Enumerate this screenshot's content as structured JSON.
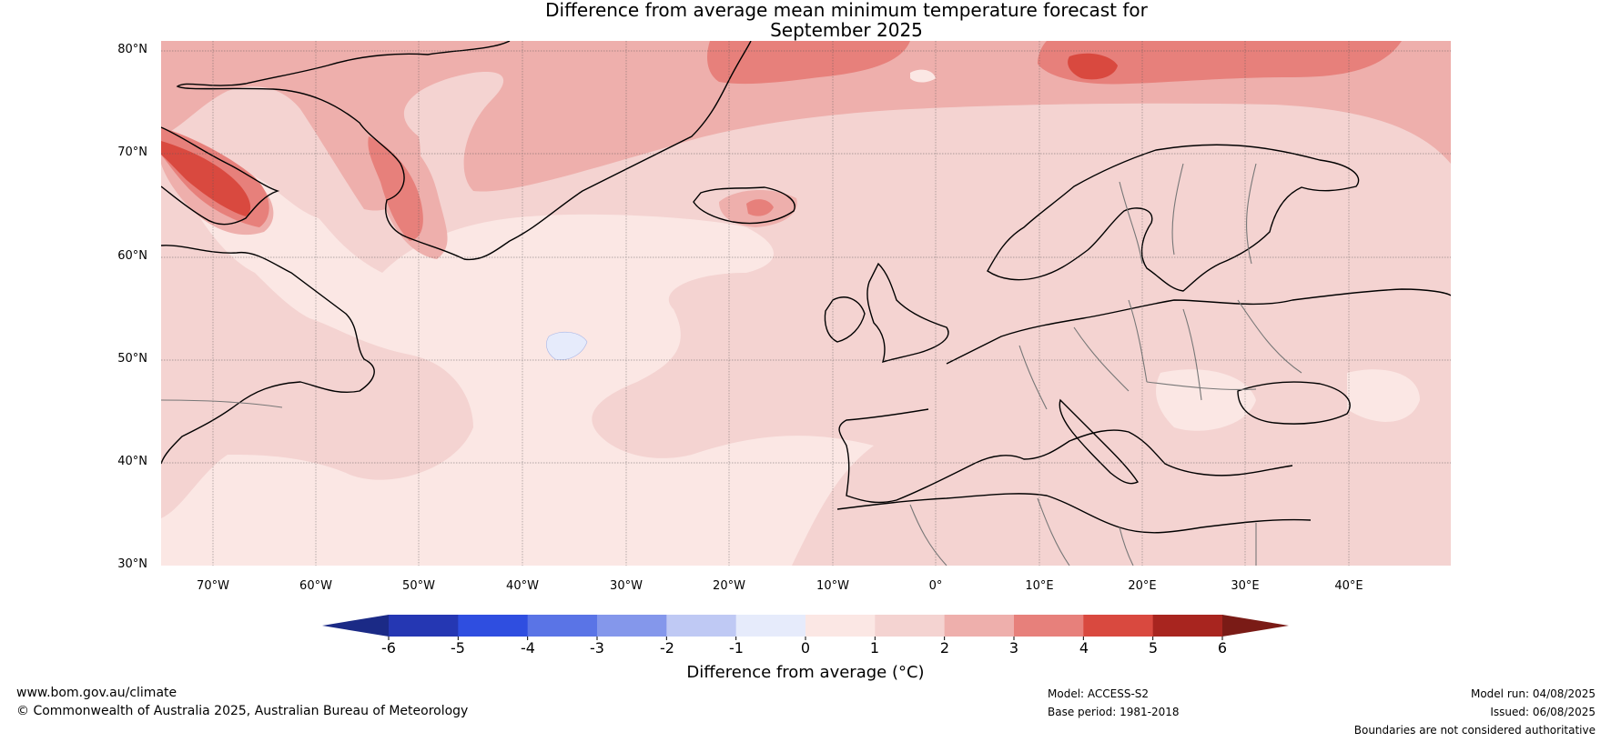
{
  "title": {
    "line1": "Difference from average mean minimum temperature forecast for",
    "line2": "September 2025"
  },
  "map": {
    "lat_labels": [
      "80°N",
      "70°N",
      "60°N",
      "50°N",
      "40°N",
      "30°N"
    ],
    "lon_labels": [
      "70°W",
      "60°W",
      "50°W",
      "40°W",
      "30°W",
      "20°W",
      "10°W",
      "0°",
      "10°E",
      "20°E",
      "30°E",
      "40°E"
    ],
    "extent": {
      "lon": [
        -75,
        50
      ],
      "lat": [
        30,
        81
      ]
    },
    "background_color": "#fbe7e4"
  },
  "colorbar": {
    "ticks": [
      "-6",
      "-5",
      "-4",
      "-3",
      "-2",
      "-1",
      "0",
      "1",
      "2",
      "3",
      "4",
      "5",
      "6"
    ],
    "label": "Difference from average (°C)",
    "colors": {
      "below": "#1b2a86",
      "bins": [
        "#2537b3",
        "#2f4ee0",
        "#5a74e6",
        "#8497eb",
        "#bfc9f4",
        "#e6ebfb",
        "#fbe7e4",
        "#f4d3d1",
        "#eeafac",
        "#e7807b",
        "#d9493f",
        "#a8251f"
      ],
      "above": "#7a1b16"
    }
  },
  "footer": {
    "url": "www.bom.gov.au/climate",
    "copyright": "© Commonwealth of Australia 2025, Australian Bureau of Meteorology",
    "model": "Model: ACCESS-S2",
    "base_period": "Base period: 1981-2018",
    "model_run": "Model run: 04/08/2025",
    "issued": "Issued: 06/08/2025",
    "disclaimer": "Boundaries are not considered authoritative"
  }
}
